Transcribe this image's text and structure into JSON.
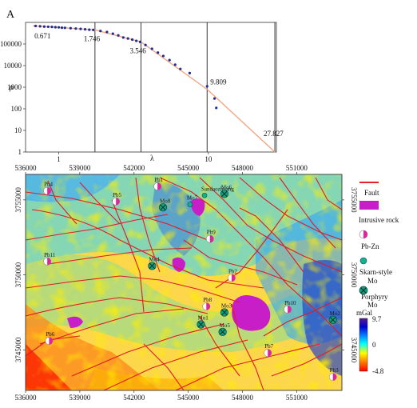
{
  "panel_label": "A",
  "chart_data": [
    {
      "type": "scatter",
      "title": "",
      "xlabel": "λ",
      "ylabel": "ρ",
      "x_scale": "log",
      "y_scale": "log",
      "ylim": [
        1,
        1000000
      ],
      "x_ticks": [
        "1",
        "10"
      ],
      "y_ticks": [
        "1",
        "10",
        "100",
        "1000",
        "10000",
        "100000"
      ],
      "fit_line_color": "#f4a582",
      "point_color": "#1f2f8f",
      "breakpoints": [
        {
          "x": 0.671,
          "y": 700000,
          "label": "0.671"
        },
        {
          "x": 1.746,
          "y": 450000,
          "label": "1.746"
        },
        {
          "x": 3.546,
          "y": 125000,
          "label": "3.546"
        },
        {
          "x": 9.809,
          "y": 800,
          "label": "9.809"
        },
        {
          "x": 27.827,
          "y": 1,
          "label": "27.827"
        }
      ],
      "points": [
        [
          0.7,
          680000
        ],
        [
          0.75,
          660000
        ],
        [
          0.8,
          640000
        ],
        [
          0.85,
          630000
        ],
        [
          0.9,
          620000
        ],
        [
          0.95,
          600000
        ],
        [
          1.0,
          590000
        ],
        [
          1.05,
          570000
        ],
        [
          1.1,
          560000
        ],
        [
          1.2,
          540000
        ],
        [
          1.3,
          520000
        ],
        [
          1.4,
          500000
        ],
        [
          1.5,
          480000
        ],
        [
          1.6,
          460000
        ],
        [
          1.7,
          450000
        ],
        [
          1.9,
          400000
        ],
        [
          2.1,
          360000
        ],
        [
          2.3,
          300000
        ],
        [
          2.5,
          250000
        ],
        [
          2.7,
          200000
        ],
        [
          2.9,
          180000
        ],
        [
          3.1,
          160000
        ],
        [
          3.3,
          140000
        ],
        [
          3.5,
          125000
        ],
        [
          3.8,
          90000
        ],
        [
          4.2,
          60000
        ],
        [
          4.6,
          40000
        ],
        [
          5.0,
          28000
        ],
        [
          5.5,
          18000
        ],
        [
          6.0,
          11000
        ],
        [
          6.5,
          7000
        ],
        [
          7.5,
          4500
        ],
        [
          9.81,
          1100
        ],
        [
          11.0,
          300
        ],
        [
          11.3,
          110
        ]
      ]
    },
    {
      "type": "heatmap",
      "x_ticks": [
        "536000",
        "539000",
        "542000",
        "545000",
        "548000",
        "551000"
      ],
      "y_ticks": [
        "3755000",
        "3750000",
        "3745000"
      ],
      "colorbar": {
        "unit": "mGal",
        "min_label": "-4.8",
        "mid_label": "0",
        "max_label": "9.7",
        "colors": [
          "#ff0000",
          "#ff8000",
          "#ffff00",
          "#00ffff",
          "#0080ff",
          "#0000cc",
          "#5a1a90"
        ]
      },
      "legend": [
        {
          "label": "Fault",
          "symbol": "fault-line",
          "color": "#e8202a"
        },
        {
          "label": "Intrusive rock",
          "symbol": "intrusive-patch",
          "color": "#c81ec8"
        },
        {
          "label": "Pb-Zn",
          "symbol": "pbzn-circle",
          "color": "#e0249c"
        },
        {
          "label": "Skarn-style\nMo",
          "symbol": "skarn-dot",
          "color": "#10b090"
        },
        {
          "label": "Porphyry\nMo",
          "symbol": "porphyry-cross",
          "color": "#10a080"
        }
      ],
      "deposits": [
        {
          "label": "Pb4",
          "type": "Pb-Zn",
          "x": 537200,
          "y": 3755600
        },
        {
          "label": "Pb5",
          "type": "Pb-Zn",
          "x": 541000,
          "y": 3754900
        },
        {
          "label": "Pb1",
          "type": "Pb-Zn",
          "x": 543300,
          "y": 3755900
        },
        {
          "label": "Mo8",
          "type": "Porphyry Mo",
          "x": 543600,
          "y": 3754500
        },
        {
          "label": "Mo7",
          "type": "Skarn-style Mo",
          "x": 545100,
          "y": 3754700
        },
        {
          "label": "Sandaozhuang",
          "type": "Skarn-style Mo",
          "x": 545900,
          "y": 3755300
        },
        {
          "label": "Mo6",
          "type": "Porphyry Mo",
          "x": 547000,
          "y": 3755400
        },
        {
          "label": "Pb9",
          "type": "Pb-Zn",
          "x": 546200,
          "y": 3752400
        },
        {
          "label": "Pb11",
          "type": "Pb-Zn",
          "x": 537200,
          "y": 3750900
        },
        {
          "label": "Mo4",
          "type": "Porphyry Mo",
          "x": 543000,
          "y": 3750600
        },
        {
          "label": "Pb2",
          "type": "Pb-Zn",
          "x": 547400,
          "y": 3749800
        },
        {
          "label": "Pb8",
          "type": "Pb-Zn",
          "x": 546000,
          "y": 3747900
        },
        {
          "label": "Mo3",
          "type": "Porphyry Mo",
          "x": 547000,
          "y": 3747500
        },
        {
          "label": "Mo1",
          "type": "Porphyry Mo",
          "x": 545700,
          "y": 3746700
        },
        {
          "label": "Mo5",
          "type": "Porphyry Mo",
          "x": 546900,
          "y": 3746200
        },
        {
          "label": "Pb10",
          "type": "Pb-Zn",
          "x": 550500,
          "y": 3747700
        },
        {
          "label": "Pb6",
          "type": "Pb-Zn",
          "x": 537300,
          "y": 3745600
        },
        {
          "label": "Pb7",
          "type": "Pb-Zn",
          "x": 549400,
          "y": 3744800
        },
        {
          "label": "Mo2",
          "type": "Porphyry Mo",
          "x": 553000,
          "y": 3747000
        },
        {
          "label": "Pb3",
          "type": "Pb-Zn",
          "x": 553000,
          "y": 3743200
        }
      ]
    }
  ]
}
